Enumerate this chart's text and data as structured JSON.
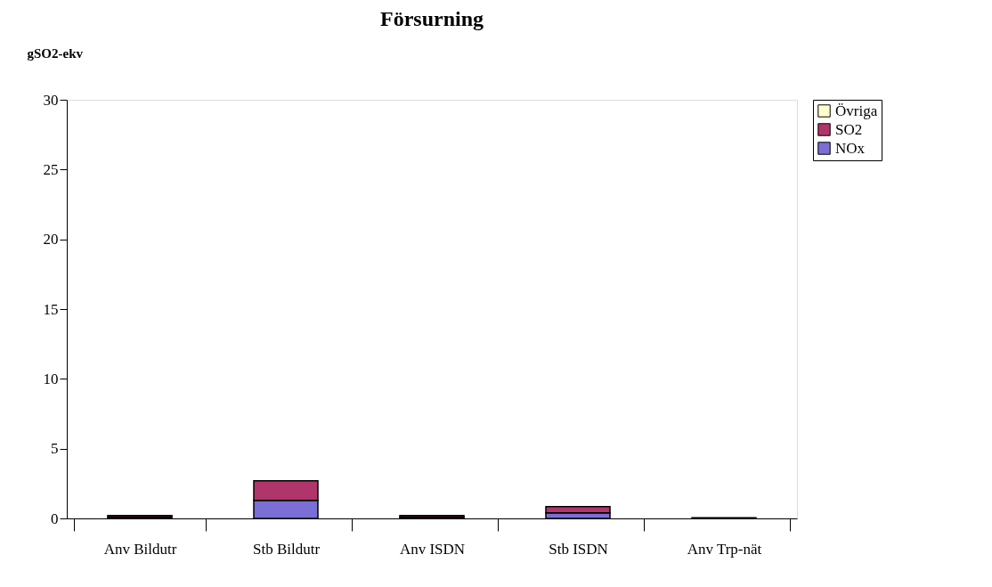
{
  "chart_data": {
    "type": "bar",
    "title": "Försurning",
    "ylabel": "gSO2-ekv",
    "categories": [
      "Anv Bildutr",
      "Stb Bildutr",
      "Anv ISDN",
      "Stb ISDN",
      "Anv Trp-nät"
    ],
    "stacked": true,
    "series": [
      {
        "name": "NOx",
        "color": "#7b6fd6",
        "values": [
          0.1,
          1.3,
          0.1,
          0.4,
          0.05
        ]
      },
      {
        "name": "SO2",
        "color": "#b0356a",
        "values": [
          0.1,
          1.4,
          0.1,
          0.45,
          null
        ]
      },
      {
        "name": "Övriga",
        "color": "#ffffcc",
        "values": [
          null,
          null,
          null,
          null,
          null
        ]
      }
    ],
    "ylim": [
      0,
      30
    ],
    "yticks": [
      0,
      5,
      10,
      15,
      20,
      25,
      30
    ],
    "grid": false,
    "legend": "right"
  }
}
